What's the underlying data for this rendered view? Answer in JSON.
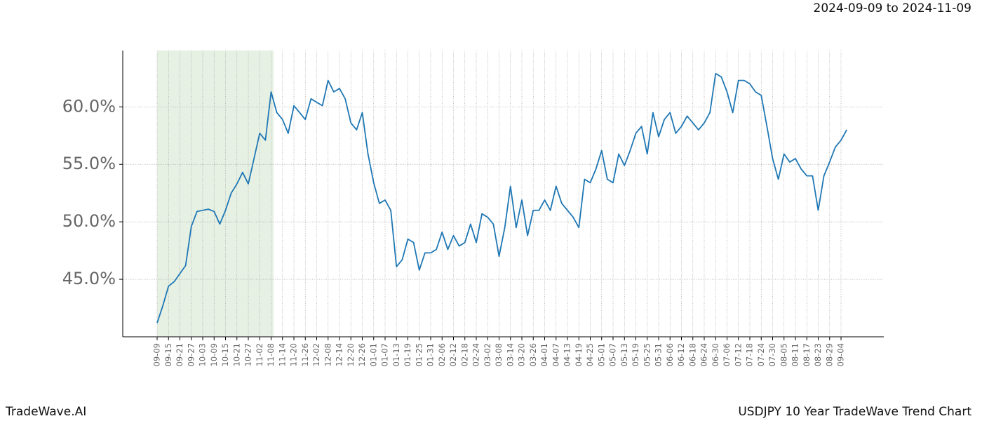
{
  "chart_data": {
    "type": "line",
    "subtitle": "2024-09-09 to 2024-11-09",
    "footer_left": "TradeWave.AI",
    "footer_right": "USDJPY 10 Year TradeWave Trend Chart",
    "categories": [
      "09-09",
      null,
      "09-15",
      null,
      "09-21",
      null,
      "09-27",
      null,
      "10-03",
      null,
      "10-09",
      null,
      "10-15",
      null,
      "10-21",
      null,
      "10-27",
      null,
      "11-02",
      null,
      "11-08",
      null,
      "11-14",
      null,
      "11-20",
      null,
      "11-26",
      null,
      "12-02",
      null,
      "12-08",
      null,
      "12-14",
      null,
      "12-20",
      null,
      "12-26",
      null,
      "01-01",
      null,
      "01-07",
      null,
      "01-13",
      null,
      "01-19",
      null,
      "01-25",
      null,
      "01-31",
      null,
      "02-06",
      null,
      "02-12",
      null,
      "02-18",
      null,
      "02-24",
      null,
      "03-02",
      null,
      "03-08",
      null,
      "03-14",
      null,
      "03-20",
      null,
      "03-26",
      null,
      "04-01",
      null,
      "04-07",
      null,
      "04-13",
      null,
      "04-19",
      null,
      "04-25",
      null,
      "05-01",
      null,
      "05-07",
      null,
      "05-13",
      null,
      "05-19",
      null,
      "05-25",
      null,
      "05-31",
      null,
      "06-06",
      null,
      "06-12",
      null,
      "06-18",
      null,
      "06-24",
      null,
      "06-30",
      null,
      "07-06",
      null,
      "07-12",
      null,
      "07-18",
      null,
      "07-24",
      null,
      "07-30",
      null,
      "08-05",
      null,
      "08-11",
      null,
      "08-17",
      null,
      "08-23",
      null,
      "08-29",
      null,
      "09-04",
      null
    ],
    "values": [
      41.2,
      42.7,
      44.4,
      44.8,
      45.5,
      46.2,
      49.6,
      50.9,
      51.0,
      51.1,
      50.9,
      49.8,
      51.0,
      52.5,
      53.3,
      54.3,
      53.3,
      55.5,
      57.7,
      57.1,
      61.3,
      59.5,
      58.9,
      57.7,
      60.1,
      59.5,
      58.9,
      60.7,
      60.4,
      60.1,
      62.3,
      61.3,
      61.6,
      60.7,
      58.6,
      58.0,
      59.5,
      55.9,
      53.4,
      51.6,
      51.9,
      51.0,
      46.1,
      46.7,
      48.5,
      48.2,
      45.8,
      47.3,
      47.3,
      47.6,
      49.1,
      47.6,
      48.8,
      47.9,
      48.2,
      49.8,
      48.2,
      50.7,
      50.4,
      49.8,
      47.0,
      49.5,
      53.1,
      49.5,
      51.9,
      48.8,
      51.0,
      51.0,
      51.9,
      51.0,
      53.1,
      51.6,
      51.0,
      50.4,
      49.5,
      53.7,
      53.4,
      54.6,
      56.2,
      53.7,
      53.4,
      55.9,
      54.9,
      56.2,
      57.7,
      58.3,
      55.9,
      59.5,
      57.4,
      58.9,
      59.5,
      57.7,
      58.3,
      59.2,
      58.6,
      58.0,
      58.6,
      59.5,
      62.9,
      62.6,
      61.3,
      59.5,
      62.3,
      62.3,
      62.0,
      61.3,
      61.0,
      58.3,
      55.5,
      53.7,
      55.9,
      55.2,
      55.5,
      54.6,
      54.0,
      54.0,
      51.0,
      54.0,
      55.2,
      56.5,
      57.1,
      58.0
    ],
    "color": "#1f77b4",
    "ylim": [
      40,
      64.9
    ],
    "yticks": [
      {
        "value": 45,
        "label": "45.0%"
      },
      {
        "value": 50,
        "label": "50.0%"
      },
      {
        "value": 55,
        "label": "55.0%"
      },
      {
        "value": 60,
        "label": "60.0%"
      }
    ],
    "grid": true
  }
}
